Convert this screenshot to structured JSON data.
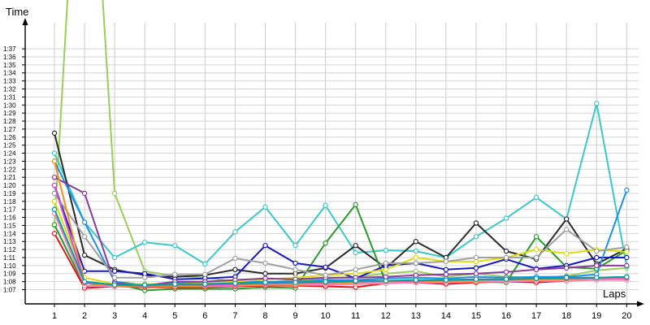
{
  "chart_data": {
    "type": "line",
    "xlabel": "Laps",
    "ylabel": "Time",
    "x": [
      1,
      2,
      3,
      4,
      5,
      6,
      7,
      8,
      9,
      10,
      11,
      12,
      13,
      14,
      15,
      16,
      17,
      18,
      19,
      20
    ],
    "ylim_seconds": [
      66,
      97
    ],
    "y_ticks": [
      "1:07",
      "1:08",
      "1:09",
      "1:10",
      "1:11",
      "1:12",
      "1:13",
      "1:14",
      "1:15",
      "1:16",
      "1:17",
      "1:18",
      "1:19",
      "1:20",
      "1:21",
      "1:22",
      "1:23",
      "1:24",
      "1:25",
      "1:26",
      "1:27",
      "1:28",
      "1:29",
      "1:30",
      "1:31",
      "1:32",
      "1:33",
      "1:34",
      "1:35",
      "1:36",
      "1:37"
    ],
    "grid": true,
    "value_unit": "seconds",
    "series": [
      {
        "color": "#9acd5a",
        "values": [
          75.0,
          140.0,
          79.0,
          69.3,
          68.7,
          68.5,
          68.0,
          67.9,
          68.2,
          68.4,
          68.6,
          69.0,
          69.3,
          68.6,
          69.0,
          68.6,
          68.5,
          68.7,
          69.4,
          69.7
        ]
      },
      {
        "color": "#3cc8c8",
        "values": [
          84.0,
          75.4,
          71.0,
          72.9,
          72.5,
          70.2,
          74.2,
          77.3,
          72.5,
          77.5,
          71.6,
          71.9,
          71.8,
          71.0,
          73.6,
          75.9,
          78.5,
          75.8,
          90.2,
          69.9
        ]
      },
      {
        "color": "#2a2a2a",
        "values": [
          86.5,
          71.3,
          69.5,
          68.8,
          68.6,
          68.8,
          69.5,
          69.0,
          69.0,
          69.7,
          72.5,
          69.7,
          73.0,
          71.0,
          75.3,
          71.8,
          70.8,
          75.8,
          70.2,
          72.1
        ]
      },
      {
        "color": "#2a9a2a",
        "values": [
          75.1,
          67.4,
          67.8,
          66.9,
          67.1,
          67.1,
          67.1,
          67.3,
          67.2,
          72.8,
          77.6,
          67.9,
          67.9,
          67.8,
          68.0,
          67.9,
          73.6,
          69.8,
          69.6,
          71.9
        ]
      },
      {
        "color": "#1818c0",
        "values": [
          80.0,
          69.3,
          69.3,
          69.0,
          68.3,
          68.4,
          68.6,
          72.5,
          70.3,
          69.8,
          68.4,
          70.0,
          70.3,
          69.5,
          69.7,
          70.8,
          69.6,
          70.0,
          71.0,
          71.0
        ]
      },
      {
        "color": "#2090e0",
        "values": [
          83.0,
          75.4,
          68.0,
          67.6,
          67.8,
          67.9,
          68.0,
          68.0,
          68.0,
          68.2,
          68.2,
          68.4,
          68.5,
          68.4,
          68.6,
          68.5,
          68.6,
          68.6,
          68.9,
          79.4
        ]
      },
      {
        "color": "#e01818",
        "values": [
          74.0,
          67.2,
          67.4,
          67.3,
          67.3,
          67.3,
          67.4,
          67.5,
          67.5,
          67.4,
          67.3,
          67.8,
          67.9,
          67.7,
          67.9,
          68.0,
          67.9,
          68.1,
          68.3,
          68.6
        ]
      },
      {
        "color": "#dddd10",
        "values": [
          78.0,
          68.5,
          67.7,
          67.7,
          67.7,
          67.8,
          68.0,
          68.3,
          68.5,
          68.8,
          69.0,
          69.5,
          71.0,
          70.5,
          70.5,
          71.0,
          72.0,
          71.5,
          72.0,
          71.7
        ]
      },
      {
        "color": "#8a3a9a",
        "values": [
          81.0,
          79.0,
          67.8,
          67.5,
          68.0,
          68.0,
          68.2,
          68.4,
          68.3,
          68.5,
          68.5,
          68.6,
          68.8,
          68.9,
          69.0,
          69.2,
          69.5,
          69.7,
          70.0,
          70.0
        ]
      },
      {
        "color": "#a0a0a0",
        "values": [
          79.0,
          73.6,
          68.5,
          68.5,
          68.9,
          68.9,
          70.9,
          70.3,
          69.5,
          68.8,
          69.5,
          70.3,
          70.3,
          70.5,
          71.0,
          71.0,
          71.0,
          74.5,
          71.8,
          72.3
        ]
      },
      {
        "color": "#ff80c0",
        "values": [
          76.5,
          67.5,
          67.4,
          67.4,
          67.4,
          67.4,
          67.5,
          67.6,
          67.6,
          67.6,
          67.7,
          67.8,
          67.9,
          67.9,
          68.0,
          68.0,
          68.1,
          68.1,
          68.2,
          68.2
        ]
      },
      {
        "color": "#f09020",
        "values": [
          83.0,
          67.8,
          67.5,
          67.4,
          67.4,
          67.5,
          67.6,
          67.7,
          67.7,
          67.8,
          67.9,
          68.0,
          68.0,
          68.1,
          68.1,
          68.2,
          68.3,
          68.3,
          68.4,
          68.4
        ]
      },
      {
        "color": "#d050d0",
        "values": [
          80.0,
          67.9,
          67.6,
          67.5,
          67.6,
          67.6,
          67.7,
          67.8,
          67.9,
          67.9,
          68.0,
          68.1,
          68.1,
          68.2,
          68.3,
          68.3,
          68.4,
          68.4,
          68.5,
          68.5
        ]
      },
      {
        "color": "#00a0a0",
        "values": [
          77.0,
          68.0,
          67.6,
          67.6,
          67.7,
          67.7,
          67.8,
          67.9,
          67.9,
          68.0,
          68.1,
          68.1,
          68.2,
          68.2,
          68.3,
          68.3,
          68.4,
          68.5,
          68.5,
          68.6
        ]
      }
    ]
  }
}
